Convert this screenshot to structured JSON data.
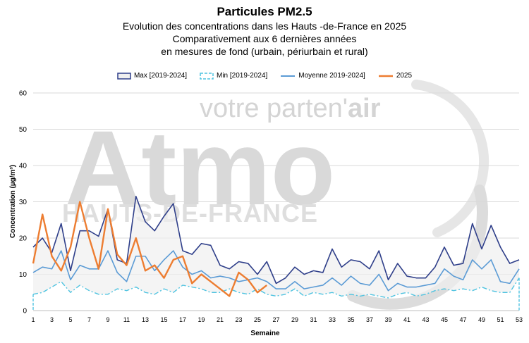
{
  "titles": {
    "title": "Particules PM2.5",
    "subtitle1": "Evolution des concentrations dans les Hauts -de-France en 2025",
    "subtitle2": "Comparativement aux 6 dernières années",
    "subtitle3": "en mesures de fond (urbain, périurbain et rural)"
  },
  "watermark": {
    "tagline_prefix": "votre parten'",
    "tagline_bold": "air",
    "brand": "Atmo",
    "region": "HAUTS-DE-FRANCE"
  },
  "colors": {
    "max": "#2f3f8a",
    "min": "#4fc3e0",
    "mean": "#5b9bd5",
    "y2025": "#ed7d31",
    "band": "#efefef",
    "grid": "#d9d9d9"
  },
  "chart_data": {
    "type": "line",
    "xlabel": "Semaine",
    "ylabel": "Concentration (µg/m³)",
    "ylim": [
      0,
      60
    ],
    "yticks": [
      0,
      10,
      20,
      30,
      40,
      50,
      60
    ],
    "xlim": [
      1,
      53
    ],
    "xticks": [
      1,
      3,
      5,
      7,
      9,
      11,
      13,
      15,
      17,
      19,
      21,
      23,
      25,
      27,
      29,
      31,
      33,
      35,
      37,
      39,
      41,
      43,
      45,
      47,
      49,
      51,
      53
    ],
    "legend_position": "top",
    "series": [
      {
        "name": "Max [2019-2024]",
        "key": "max",
        "values": [
          17.5,
          20,
          16,
          24,
          11,
          22,
          22,
          20.5,
          28,
          14,
          13,
          31.5,
          24.5,
          22,
          26,
          29.5,
          16.5,
          15.5,
          18.5,
          18,
          12.5,
          11.5,
          13.5,
          13,
          10,
          13.5,
          7.5,
          9,
          12,
          10,
          11,
          10.5,
          17,
          12,
          14,
          13.5,
          11.5,
          16.5,
          8.5,
          13,
          9.5,
          9,
          9,
          12,
          17.5,
          12.5,
          13,
          24,
          17,
          23.5,
          17.5,
          13,
          14
        ]
      },
      {
        "name": "Min [2019-2024]",
        "key": "min",
        "values": [
          4.5,
          5,
          6.5,
          8,
          5,
          7,
          5.5,
          4.5,
          4.5,
          6,
          5.5,
          6.5,
          5,
          4.5,
          6,
          5,
          7,
          6.5,
          6,
          5,
          5,
          6,
          5,
          4.5,
          6,
          4.5,
          4,
          4.5,
          6,
          4,
          5,
          4.5,
          5,
          4,
          4.5,
          4,
          4.5,
          4,
          3.5,
          4.5,
          5,
          4,
          4.5,
          5.5,
          6,
          5.5,
          6,
          5.5,
          6.5,
          5.5,
          5,
          5,
          9
        ]
      },
      {
        "name": "Moyenne 2019-2024]",
        "key": "mean",
        "values": [
          10.5,
          12,
          11.5,
          16.5,
          8.5,
          12.5,
          11.5,
          11.5,
          16.5,
          10.5,
          8,
          15,
          15,
          11,
          14,
          16.5,
          12,
          10,
          11,
          9,
          9.5,
          9,
          8,
          8.5,
          9,
          8,
          6,
          6,
          8,
          6,
          6.5,
          7,
          9,
          7,
          9.5,
          7.5,
          7,
          10,
          5.5,
          7.5,
          6.5,
          6.5,
          7,
          7.5,
          11.5,
          9.5,
          8.5,
          14,
          11.5,
          14,
          8,
          7.5,
          11.5
        ]
      },
      {
        "name": "2025",
        "key": "y2025",
        "values": [
          13,
          26.5,
          15,
          11,
          17.5,
          30,
          20,
          11.5,
          28,
          15.5,
          12.5,
          20,
          11,
          12.5,
          9,
          14,
          15,
          7.5,
          10,
          8,
          6,
          4,
          10.5,
          8.5,
          5,
          7
        ]
      }
    ]
  }
}
